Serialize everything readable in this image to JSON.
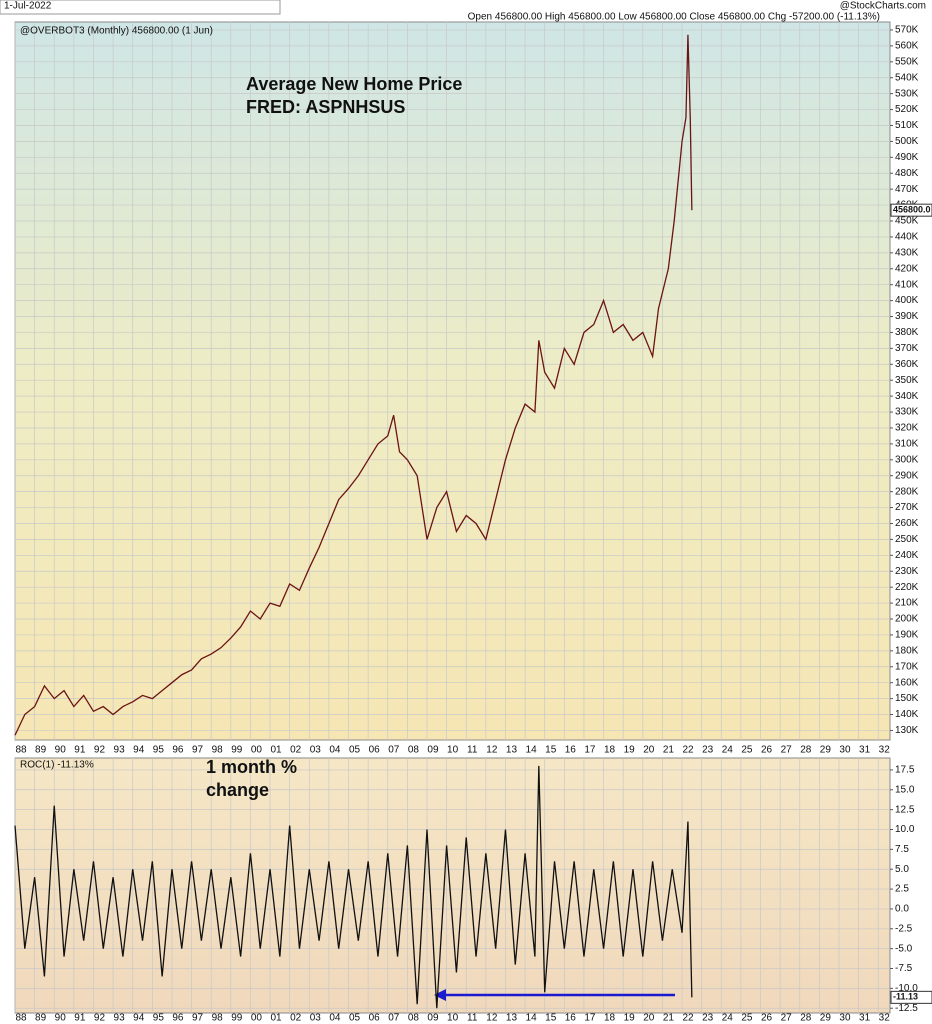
{
  "header": {
    "date": "1-Jul-2022",
    "ohlc": "Open 456800.00  High 456800.00  Low 456800.00  Close 456800.00  Chg -57200.00 (-11.13%)",
    "brand": "@StockCharts.com"
  },
  "chart_data": [
    {
      "type": "line",
      "title": "@OVERBOT3 (Monthly) 456800.00 (1 Jun)",
      "annotation": [
        "Average New Home Price",
        "FRED: ASPNHSUS"
      ],
      "last_label": "456800.0",
      "series": [
        {
          "color": "#6b1414",
          "x": [
            1988.0,
            1988.5,
            1989.0,
            1989.5,
            1990.0,
            1990.5,
            1991.0,
            1991.5,
            1992.0,
            1992.5,
            1993.0,
            1993.5,
            1994.0,
            1994.5,
            1995.0,
            1995.5,
            1996.0,
            1996.5,
            1997.0,
            1997.5,
            1998.0,
            1998.5,
            1999.0,
            1999.5,
            2000.0,
            2000.5,
            2001.0,
            2001.5,
            2002.0,
            2002.5,
            2003.0,
            2003.5,
            2004.0,
            2004.5,
            2005.0,
            2005.5,
            2006.0,
            2006.5,
            2007.0,
            2007.3,
            2007.6,
            2008.0,
            2008.5,
            2009.0,
            2009.5,
            2010.0,
            2010.5,
            2011.0,
            2011.5,
            2012.0,
            2012.5,
            2013.0,
            2013.5,
            2014.0,
            2014.5,
            2014.7,
            2015.0,
            2015.5,
            2016.0,
            2016.5,
            2017.0,
            2017.5,
            2018.0,
            2018.5,
            2019.0,
            2019.5,
            2020.0,
            2020.5,
            2020.8,
            2021.0,
            2021.3,
            2021.6,
            2022.0,
            2022.2,
            2022.3,
            2022.42,
            2022.5
          ],
          "values": [
            127000,
            140000,
            145000,
            158000,
            150000,
            155000,
            145000,
            152000,
            142000,
            145000,
            140000,
            145000,
            148000,
            152000,
            150000,
            155000,
            160000,
            165000,
            168000,
            175000,
            178000,
            182000,
            188000,
            195000,
            205000,
            200000,
            210000,
            208000,
            222000,
            218000,
            232000,
            245000,
            260000,
            275000,
            282000,
            290000,
            300000,
            310000,
            315000,
            328000,
            305000,
            300000,
            290000,
            250000,
            270000,
            280000,
            255000,
            265000,
            260000,
            250000,
            275000,
            300000,
            320000,
            335000,
            330000,
            375000,
            355000,
            345000,
            370000,
            360000,
            380000,
            385000,
            400000,
            380000,
            385000,
            375000,
            380000,
            365000,
            395000,
            405000,
            420000,
            450000,
            500000,
            515000,
            567000,
            514000,
            456800
          ]
        }
      ],
      "xlim": [
        1988,
        2032.6
      ],
      "ylim": [
        124000,
        575000
      ],
      "grid": true,
      "xticks": [
        {
          "value": 1988,
          "label": "88"
        },
        {
          "value": 1989,
          "label": "89"
        },
        {
          "value": 1990,
          "label": "90"
        },
        {
          "value": 1991,
          "label": "91"
        },
        {
          "value": 1992,
          "label": "92"
        },
        {
          "value": 1993,
          "label": "93"
        },
        {
          "value": 1994,
          "label": "94"
        },
        {
          "value": 1995,
          "label": "95"
        },
        {
          "value": 1996,
          "label": "96"
        },
        {
          "value": 1997,
          "label": "97"
        },
        {
          "value": 1998,
          "label": "98"
        },
        {
          "value": 1999,
          "label": "99"
        },
        {
          "value": 2000,
          "label": "00"
        },
        {
          "value": 2001,
          "label": "01"
        },
        {
          "value": 2002,
          "label": "02"
        },
        {
          "value": 2003,
          "label": "03"
        },
        {
          "value": 2004,
          "label": "04"
        },
        {
          "value": 2005,
          "label": "05"
        },
        {
          "value": 2006,
          "label": "06"
        },
        {
          "value": 2007,
          "label": "07"
        },
        {
          "value": 2008,
          "label": "08"
        },
        {
          "value": 2009,
          "label": "09"
        },
        {
          "value": 2010,
          "label": "10"
        },
        {
          "value": 2011,
          "label": "11"
        },
        {
          "value": 2012,
          "label": "12"
        },
        {
          "value": 2013,
          "label": "13"
        },
        {
          "value": 2014,
          "label": "14"
        },
        {
          "value": 2015,
          "label": "15"
        },
        {
          "value": 2016,
          "label": "16"
        },
        {
          "value": 2017,
          "label": "17"
        },
        {
          "value": 2018,
          "label": "18"
        },
        {
          "value": 2019,
          "label": "19"
        },
        {
          "value": 2020,
          "label": "20"
        },
        {
          "value": 2021,
          "label": "21"
        },
        {
          "value": 2022,
          "label": "22"
        },
        {
          "value": 2023,
          "label": "23"
        },
        {
          "value": 2024,
          "label": "24"
        },
        {
          "value": 2025,
          "label": "25"
        },
        {
          "value": 2026,
          "label": "26"
        },
        {
          "value": 2027,
          "label": "27"
        },
        {
          "value": 2028,
          "label": "28"
        },
        {
          "value": 2029,
          "label": "29"
        },
        {
          "value": 2030,
          "label": "30"
        },
        {
          "value": 2031,
          "label": "31"
        },
        {
          "value": 2032,
          "label": "32"
        }
      ],
      "yticks": [
        {
          "value": 130000,
          "label": "130K"
        },
        {
          "value": 140000,
          "label": "140K"
        },
        {
          "value": 150000,
          "label": "150K"
        },
        {
          "value": 160000,
          "label": "160K"
        },
        {
          "value": 170000,
          "label": "170K"
        },
        {
          "value": 180000,
          "label": "180K"
        },
        {
          "value": 190000,
          "label": "190K"
        },
        {
          "value": 200000,
          "label": "200K"
        },
        {
          "value": 210000,
          "label": "210K"
        },
        {
          "value": 220000,
          "label": "220K"
        },
        {
          "value": 230000,
          "label": "230K"
        },
        {
          "value": 240000,
          "label": "240K"
        },
        {
          "value": 250000,
          "label": "250K"
        },
        {
          "value": 260000,
          "label": "260K"
        },
        {
          "value": 270000,
          "label": "270K"
        },
        {
          "value": 280000,
          "label": "280K"
        },
        {
          "value": 290000,
          "label": "290K"
        },
        {
          "value": 300000,
          "label": "300K"
        },
        {
          "value": 310000,
          "label": "310K"
        },
        {
          "value": 320000,
          "label": "320K"
        },
        {
          "value": 330000,
          "label": "330K"
        },
        {
          "value": 340000,
          "label": "340K"
        },
        {
          "value": 350000,
          "label": "350K"
        },
        {
          "value": 360000,
          "label": "360K"
        },
        {
          "value": 370000,
          "label": "370K"
        },
        {
          "value": 380000,
          "label": "380K"
        },
        {
          "value": 390000,
          "label": "390K"
        },
        {
          "value": 400000,
          "label": "400K"
        },
        {
          "value": 410000,
          "label": "410K"
        },
        {
          "value": 420000,
          "label": "420K"
        },
        {
          "value": 430000,
          "label": "430K"
        },
        {
          "value": 440000,
          "label": "440K"
        },
        {
          "value": 450000,
          "label": "450K"
        },
        {
          "value": 460000,
          "label": "460K"
        },
        {
          "value": 470000,
          "label": "470K"
        },
        {
          "value": 480000,
          "label": "480K"
        },
        {
          "value": 490000,
          "label": "490K"
        },
        {
          "value": 500000,
          "label": "500K"
        },
        {
          "value": 510000,
          "label": "510K"
        },
        {
          "value": 520000,
          "label": "520K"
        },
        {
          "value": 530000,
          "label": "530K"
        },
        {
          "value": 540000,
          "label": "540K"
        },
        {
          "value": 550000,
          "label": "550K"
        },
        {
          "value": 560000,
          "label": "560K"
        },
        {
          "value": 570000,
          "label": "570K"
        }
      ]
    },
    {
      "type": "line",
      "title": "ROC(1) -11.13%",
      "annotation": [
        "1 month %",
        "change"
      ],
      "last_label": "-11.13",
      "series": [
        {
          "color": "#111111",
          "x": [
            1988.0,
            1988.5,
            1989.0,
            1989.5,
            1990.0,
            1990.5,
            1991.0,
            1991.5,
            1992.0,
            1992.5,
            1993.0,
            1993.5,
            1994.0,
            1994.5,
            1995.0,
            1995.5,
            1996.0,
            1996.5,
            1997.0,
            1997.5,
            1998.0,
            1998.5,
            1999.0,
            1999.5,
            2000.0,
            2000.5,
            2001.0,
            2001.5,
            2002.0,
            2002.5,
            2003.0,
            2003.5,
            2004.0,
            2004.5,
            2005.0,
            2005.5,
            2006.0,
            2006.5,
            2007.0,
            2007.5,
            2008.0,
            2008.5,
            2009.0,
            2009.5,
            2010.0,
            2010.5,
            2011.0,
            2011.5,
            2012.0,
            2012.5,
            2013.0,
            2013.5,
            2014.0,
            2014.5,
            2014.7,
            2015.0,
            2015.5,
            2016.0,
            2016.5,
            2017.0,
            2017.5,
            2018.0,
            2018.5,
            2019.0,
            2019.5,
            2020.0,
            2020.5,
            2021.0,
            2021.5,
            2022.0,
            2022.3,
            2022.5
          ],
          "values": [
            10.5,
            -5,
            4,
            -8.5,
            13,
            -6,
            5,
            -4,
            6,
            -5,
            4,
            -6,
            5,
            -4,
            6,
            -8.5,
            5,
            -5,
            6,
            -4,
            5,
            -5,
            4,
            -6,
            7,
            -5,
            5,
            -6,
            10.5,
            -5,
            5,
            -4,
            6,
            -5,
            5,
            -4,
            6,
            -6,
            7,
            -6,
            8,
            -12,
            10,
            -12.5,
            8,
            -8,
            9,
            -6,
            7,
            -5,
            10,
            -7,
            7,
            -6,
            18,
            -10.5,
            6,
            -5,
            6,
            -6,
            5,
            -5,
            6,
            -6,
            5,
            -6,
            6,
            -4,
            5,
            -3,
            11,
            -11.13
          ]
        }
      ],
      "xlim": [
        1988,
        2032.6
      ],
      "ylim": [
        -13.1,
        19.0
      ],
      "grid": true,
      "xticks": [
        {
          "value": 1988,
          "label": "88"
        },
        {
          "value": 1989,
          "label": "89"
        },
        {
          "value": 1990,
          "label": "90"
        },
        {
          "value": 1991,
          "label": "91"
        },
        {
          "value": 1992,
          "label": "92"
        },
        {
          "value": 1993,
          "label": "93"
        },
        {
          "value": 1994,
          "label": "94"
        },
        {
          "value": 1995,
          "label": "95"
        },
        {
          "value": 1996,
          "label": "96"
        },
        {
          "value": 1997,
          "label": "97"
        },
        {
          "value": 1998,
          "label": "98"
        },
        {
          "value": 1999,
          "label": "99"
        },
        {
          "value": 2000,
          "label": "00"
        },
        {
          "value": 2001,
          "label": "01"
        },
        {
          "value": 2002,
          "label": "02"
        },
        {
          "value": 2003,
          "label": "03"
        },
        {
          "value": 2004,
          "label": "04"
        },
        {
          "value": 2005,
          "label": "05"
        },
        {
          "value": 2006,
          "label": "06"
        },
        {
          "value": 2007,
          "label": "07"
        },
        {
          "value": 2008,
          "label": "08"
        },
        {
          "value": 2009,
          "label": "09"
        },
        {
          "value": 2010,
          "label": "10"
        },
        {
          "value": 2011,
          "label": "11"
        },
        {
          "value": 2012,
          "label": "12"
        },
        {
          "value": 2013,
          "label": "13"
        },
        {
          "value": 2014,
          "label": "14"
        },
        {
          "value": 2015,
          "label": "15"
        },
        {
          "value": 2016,
          "label": "16"
        },
        {
          "value": 2017,
          "label": "17"
        },
        {
          "value": 2018,
          "label": "18"
        },
        {
          "value": 2019,
          "label": "19"
        },
        {
          "value": 2020,
          "label": "20"
        },
        {
          "value": 2021,
          "label": "21"
        },
        {
          "value": 2022,
          "label": "22"
        },
        {
          "value": 2023,
          "label": "23"
        },
        {
          "value": 2024,
          "label": "24"
        },
        {
          "value": 2025,
          "label": "25"
        },
        {
          "value": 2026,
          "label": "26"
        },
        {
          "value": 2027,
          "label": "27"
        },
        {
          "value": 2028,
          "label": "28"
        },
        {
          "value": 2029,
          "label": "29"
        },
        {
          "value": 2030,
          "label": "30"
        },
        {
          "value": 2031,
          "label": "31"
        },
        {
          "value": 2032,
          "label": "32"
        }
      ],
      "yticks": [
        17.5,
        {
          "value": 15,
          "label": "15.0"
        },
        12.5,
        {
          "value": 10,
          "label": "10.0"
        },
        7.5,
        {
          "value": 5,
          "label": "5.0"
        },
        2.5,
        {
          "value": 0,
          "label": "0.0"
        },
        -2.5,
        {
          "value": -5,
          "label": "-5.0"
        },
        -7.5,
        {
          "value": -10,
          "label": "-10.0"
        },
        -12.5
      ]
    }
  ]
}
